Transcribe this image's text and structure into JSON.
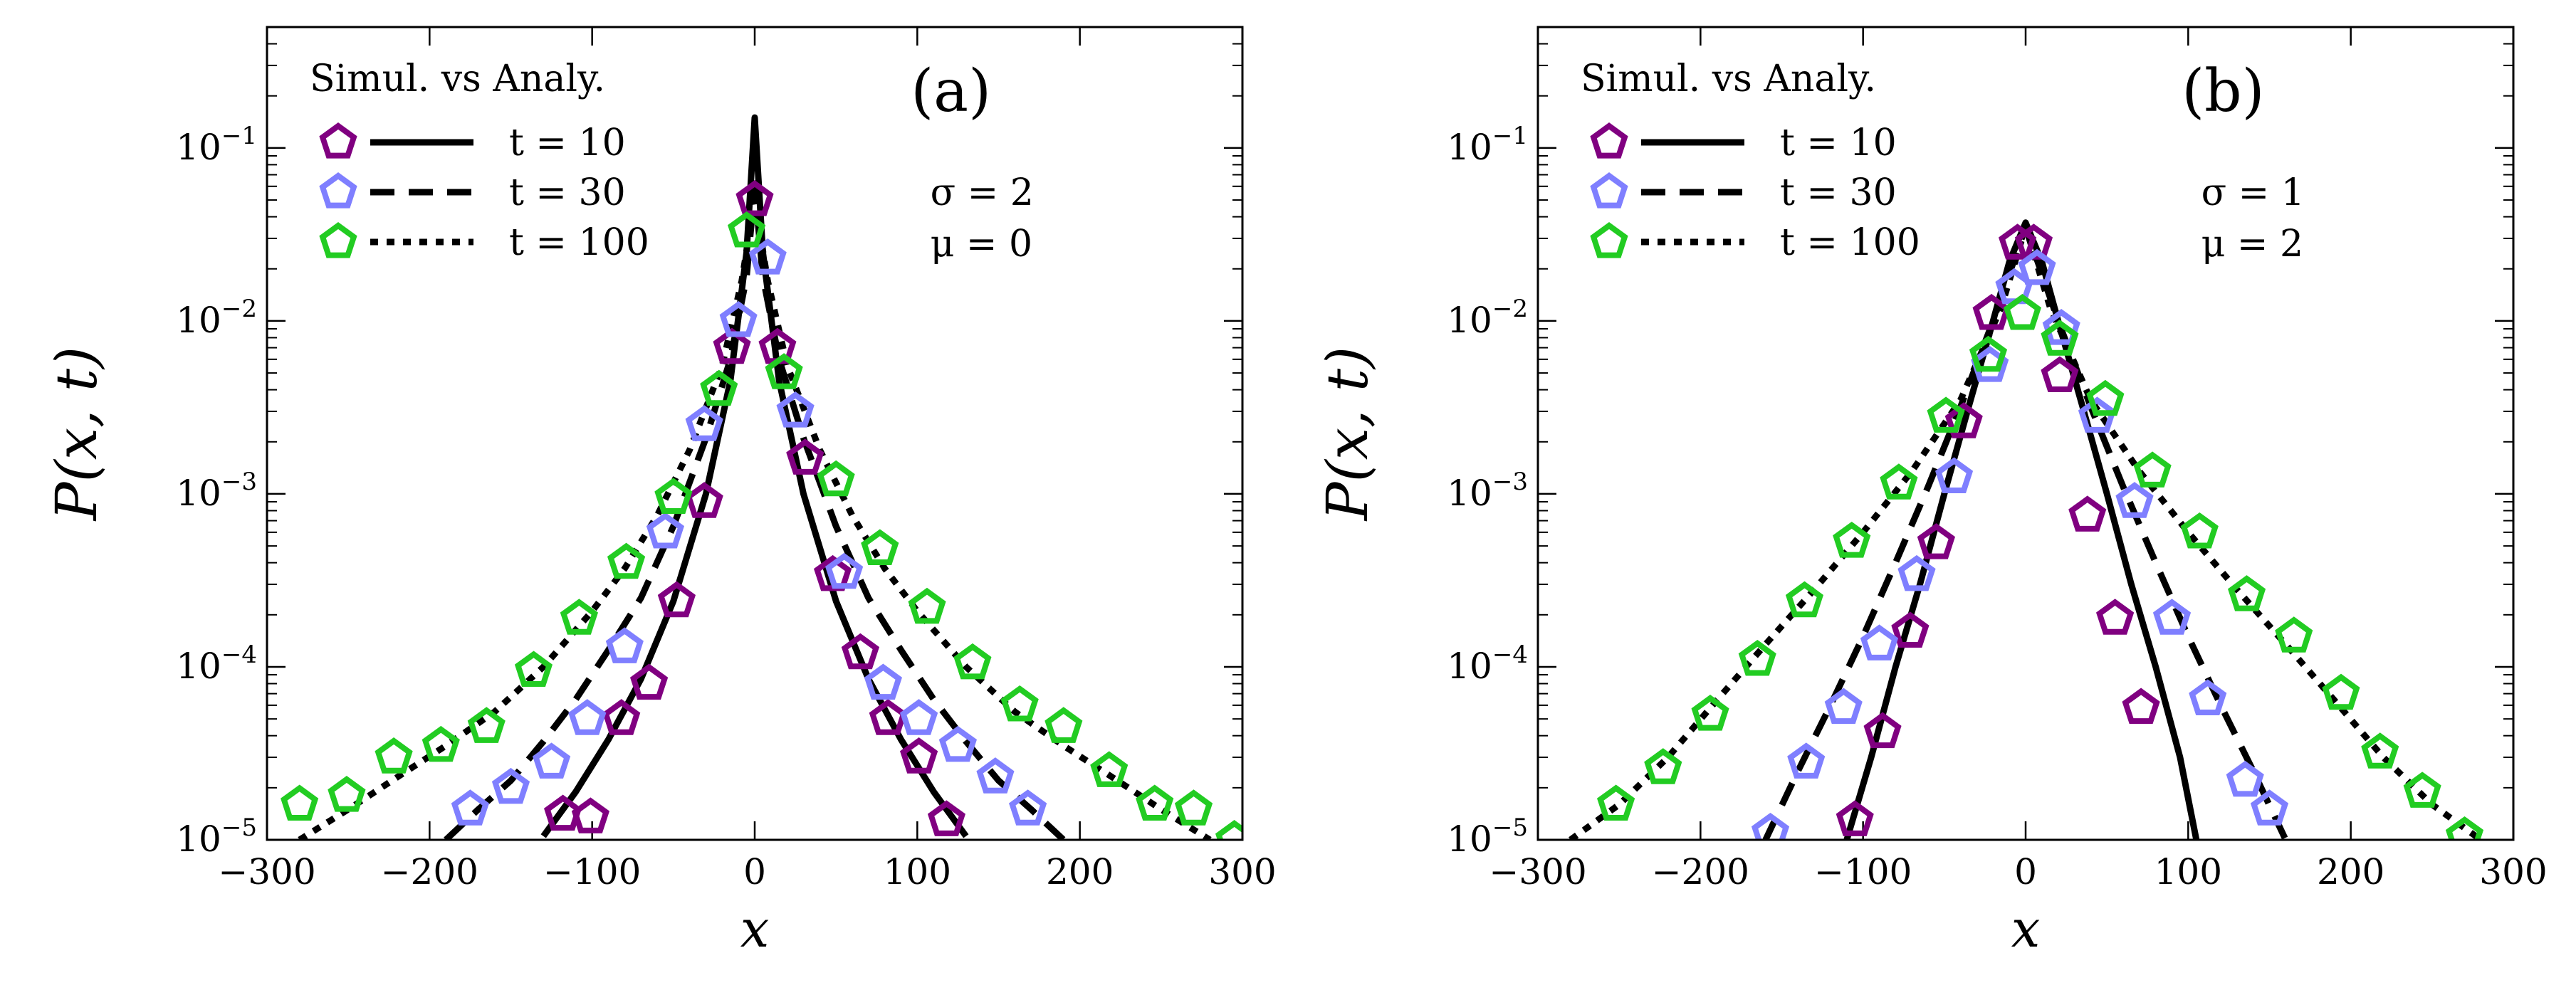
{
  "chart_data": [
    {
      "type": "scatter",
      "panel_label": "(a)",
      "xlabel": "x",
      "ylabel": "P(x, t)",
      "xlim": [
        -300,
        300
      ],
      "ylim": [
        1e-05,
        0.5
      ],
      "yscale": "log",
      "xticks": [
        -300,
        -200,
        -100,
        0,
        100,
        200,
        300
      ],
      "xtick_labels": [
        "−300",
        "−200",
        "−100",
        "0",
        "100",
        "200",
        "300"
      ],
      "yticks": [
        1e-05,
        0.0001,
        0.001,
        0.01,
        0.1
      ],
      "ytick_exponents": [
        "−5",
        "−4",
        "−3",
        "−2",
        "−1"
      ],
      "ytick_base": "10",
      "params": [
        "σ = 2",
        "μ = 0"
      ],
      "legend_title": "Simul.  vs Analy.",
      "legend_position": "top-left",
      "series": [
        {
          "name": "t = 10",
          "color": "#800080",
          "line_style": "solid",
          "simulation": {
            "x": [
              -118,
              -101,
              -82,
              -65,
              -48,
              -31,
              -14,
              0,
              14,
              31,
              48,
              65,
              82,
              101,
              118
            ],
            "y": [
              1.4e-05,
              1.35e-05,
              5e-05,
              8e-05,
              0.00024,
              0.0009,
              0.007,
              0.05,
              0.007,
              0.0016,
              0.00034,
              0.00012,
              5e-05,
              3e-05,
              1.3e-05
            ]
          },
          "analytic": {
            "x": [
              -130,
              -110,
              -90,
              -70,
              -50,
              -30,
              -15,
              -5,
              0,
              5,
              15,
              30,
              50,
              70,
              90,
              110,
              130
            ],
            "y": [
              1.05e-05,
              1.9e-05,
              3.8e-05,
              8.5e-05,
              0.00024,
              0.001,
              0.0045,
              0.025,
              0.15,
              0.025,
              0.0045,
              0.001,
              0.00024,
              8.5e-05,
              3.8e-05,
              1.9e-05,
              1.05e-05
            ]
          }
        },
        {
          "name": "t = 30",
          "color": "#7f7fff",
          "line_style": "dashed",
          "simulation": {
            "x": [
              -175,
              -150,
              -125,
              -103,
              -80,
              -55,
              -31,
              -10,
              8,
              25,
              55,
              79,
              101,
              125,
              148,
              168
            ],
            "y": [
              1.5e-05,
              2e-05,
              2.8e-05,
              5e-05,
              0.00013,
              0.0006,
              0.0025,
              0.01,
              0.023,
              0.003,
              0.00035,
              8e-05,
              5e-05,
              3.5e-05,
              2.3e-05,
              1.5e-05
            ]
          },
          "analytic": {
            "x": [
              -190,
              -170,
              -150,
              -130,
              -110,
              -90,
              -70,
              -50,
              -30,
              -15,
              -5,
              0,
              5,
              15,
              30,
              50,
              70,
              90,
              110,
              130,
              150,
              170,
              190
            ],
            "y": [
              1e-05,
              1.5e-05,
              2.2e-05,
              3.7e-05,
              6.5e-05,
              0.000125,
              0.00025,
              0.00065,
              0.0021,
              0.006,
              0.018,
              0.06,
              0.018,
              0.006,
              0.0021,
              0.00065,
              0.00025,
              0.000125,
              6.5e-05,
              3.7e-05,
              2.2e-05,
              1.5e-05,
              1e-05
            ]
          }
        },
        {
          "name": "t = 100",
          "color": "#22cc22",
          "line_style": "dotted",
          "simulation": {
            "x": [
              -280,
              -251,
              -222,
              -193,
              -165,
              -136,
              -108,
              -79,
              -50,
              -22,
              -5,
              18,
              50,
              77,
              106,
              134,
              163,
              190,
              218,
              246,
              270,
              295
            ],
            "y": [
              1.6e-05,
              1.8e-05,
              3e-05,
              3.5e-05,
              4.5e-05,
              9.5e-05,
              0.00019,
              0.0004,
              0.00095,
              0.004,
              0.033,
              0.005,
              0.0012,
              0.00048,
              0.00022,
              0.000105,
              6e-05,
              4.5e-05,
              2.5e-05,
              1.6e-05,
              1.5e-05,
              1e-05
            ]
          },
          "analytic": {
            "x": [
              -280,
              -250,
              -220,
              -190,
              -160,
              -130,
              -100,
              -80,
              -60,
              -40,
              -20,
              -8,
              0,
              8,
              20,
              40,
              60,
              80,
              100,
              130,
              160,
              190,
              220,
              250,
              280
            ],
            "y": [
              1e-05,
              1.5e-05,
              2.3e-05,
              3.5e-05,
              5.5e-05,
              0.0001,
              0.00021,
              0.00037,
              0.00075,
              0.0018,
              0.0055,
              0.017,
              0.05,
              0.017,
              0.0055,
              0.0018,
              0.00075,
              0.00037,
              0.00021,
              0.0001,
              5.5e-05,
              3.5e-05,
              2.3e-05,
              1.5e-05,
              1e-05
            ]
          }
        }
      ]
    },
    {
      "type": "scatter",
      "panel_label": "(b)",
      "xlabel": "x",
      "ylabel": "P(x, t)",
      "xlim": [
        -300,
        300
      ],
      "ylim": [
        1e-05,
        0.5
      ],
      "yscale": "log",
      "xticks": [
        -300,
        -200,
        -100,
        0,
        100,
        200,
        300
      ],
      "xtick_labels": [
        "−300",
        "−200",
        "−100",
        "0",
        "100",
        "200",
        "300"
      ],
      "yticks": [
        1e-05,
        0.0001,
        0.001,
        0.01,
        0.1
      ],
      "ytick_exponents": [
        "−5",
        "−4",
        "−3",
        "−2",
        "−1"
      ],
      "ytick_base": "10",
      "params": [
        "σ = 1",
        "μ = 2"
      ],
      "legend_title": "Simul.  vs Analy.",
      "legend_position": "top-left",
      "series": [
        {
          "name": "t = 10",
          "color": "#800080",
          "line_style": "solid",
          "simulation": {
            "x": [
              -105,
              -88,
              -71,
              -55,
              -38,
              -21,
              -5,
              5,
              21,
              38,
              55,
              71
            ],
            "y": [
              1.3e-05,
              4.2e-05,
              0.00016,
              0.00052,
              0.0026,
              0.011,
              0.028,
              0.028,
              0.0048,
              0.00075,
              0.00019,
              5.8e-05
            ]
          },
          "analytic": {
            "x": [
              -110,
              -95,
              -80,
              -65,
              -50,
              -35,
              -20,
              -10,
              0,
              10,
              20,
              35,
              50,
              65,
              80,
              95,
              105
            ],
            "y": [
              1e-05,
              3e-05,
              0.0001,
              0.0003,
              0.001,
              0.0032,
              0.01,
              0.022,
              0.037,
              0.022,
              0.01,
              0.0032,
              0.001,
              0.0003,
              0.0001,
              3e-05,
              1e-05
            ]
          }
        },
        {
          "name": "t = 30",
          "color": "#7f7fff",
          "line_style": "dashed",
          "simulation": {
            "x": [
              -157,
              -135,
              -112,
              -90,
              -67,
              -44,
              -22,
              -7,
              7,
              22,
              44,
              67,
              90,
              112,
              135,
              150
            ],
            "y": [
              1.1e-05,
              2.8e-05,
              5.8e-05,
              0.000135,
              0.00034,
              0.00125,
              0.0055,
              0.0155,
              0.02,
              0.009,
              0.0028,
              0.0009,
              0.00019,
              6.5e-05,
              2.2e-05,
              1.5e-05
            ]
          },
          "analytic": {
            "x": [
              -160,
              -140,
              -120,
              -100,
              -80,
              -60,
              -40,
              -20,
              0,
              20,
              40,
              60,
              80,
              100,
              120,
              140,
              160
            ],
            "y": [
              1e-05,
              2.5e-05,
              6e-05,
              0.00015,
              0.0004,
              0.0011,
              0.0032,
              0.01,
              0.035,
              0.01,
              0.0032,
              0.0011,
              0.0004,
              0.00015,
              6e-05,
              2.5e-05,
              1e-05
            ]
          }
        },
        {
          "name": "t = 100",
          "color": "#22cc22",
          "line_style": "dotted",
          "simulation": {
            "x": [
              -252,
              -223,
              -194,
              -165,
              -136,
              -107,
              -78,
              -49,
              -23,
              -2,
              21,
              49,
              78,
              107,
              136,
              165,
              194,
              218,
              244,
              270
            ],
            "y": [
              1.6e-05,
              2.6e-05,
              5.3e-05,
              0.00011,
              0.00024,
              0.00053,
              0.00115,
              0.0028,
              0.0063,
              0.011,
              0.0078,
              0.0035,
              0.00135,
              0.0006,
              0.00026,
              0.00015,
              7e-05,
              3.2e-05,
              1.9e-05,
              1.05e-05
            ]
          },
          "analytic": {
            "x": [
              -280,
              -250,
              -220,
              -190,
              -160,
              -130,
              -100,
              -70,
              -40,
              -15,
              0,
              15,
              40,
              70,
              100,
              130,
              160,
              190,
              220,
              250,
              280
            ],
            "y": [
              1e-05,
              1.6e-05,
              3e-05,
              6.4e-05,
              0.000135,
              0.00028,
              0.0006,
              0.00135,
              0.0035,
              0.012,
              0.035,
              0.012,
              0.0035,
              0.00135,
              0.0006,
              0.00028,
              0.000135,
              6.4e-05,
              3e-05,
              1.6e-05,
              1e-05
            ]
          }
        }
      ]
    }
  ]
}
